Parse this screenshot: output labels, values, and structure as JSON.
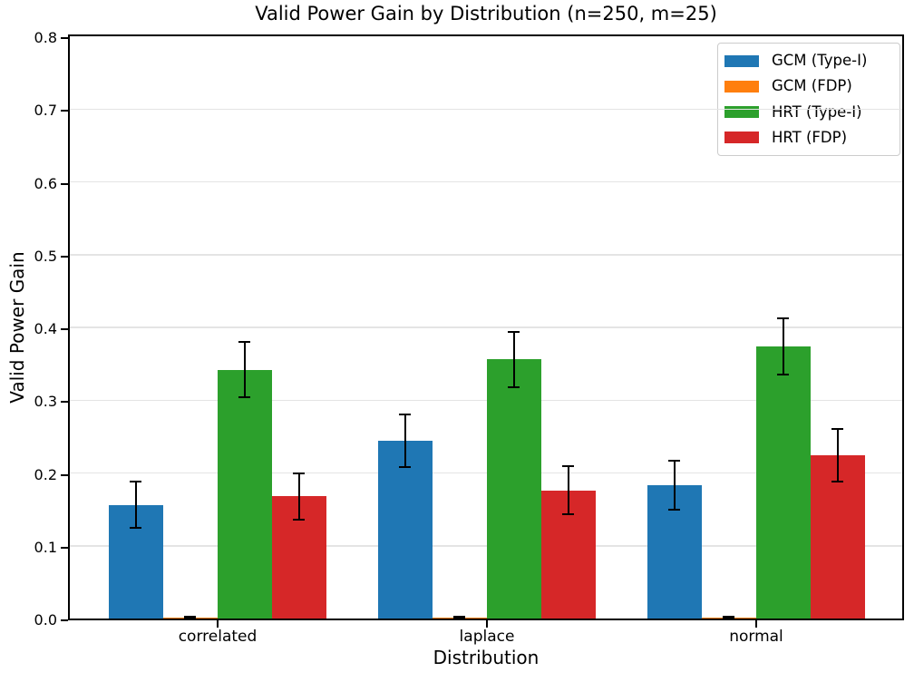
{
  "chart_data": {
    "type": "bar",
    "title": "Valid Power Gain by Distribution (n=250, m=25)",
    "xlabel": "Distribution",
    "ylabel": "Valid Power Gain",
    "categories": [
      "correlated",
      "laplace",
      "normal"
    ],
    "series": [
      {
        "name": "GCM (Type-I)",
        "color": "#1f77b4",
        "values": [
          0.156,
          0.244,
          0.183
        ],
        "errors": [
          0.032,
          0.036,
          0.034
        ]
      },
      {
        "name": "GCM (FDP)",
        "color": "#ff7f0e",
        "values": [
          0.001,
          0.001,
          0.001
        ],
        "errors": [
          0.001,
          0.001,
          0.001
        ]
      },
      {
        "name": "HRT (Type-I)",
        "color": "#2ca02c",
        "values": [
          0.342,
          0.356,
          0.374
        ],
        "errors": [
          0.038,
          0.038,
          0.039
        ]
      },
      {
        "name": "HRT (FDP)",
        "color": "#d62728",
        "values": [
          0.168,
          0.176,
          0.224
        ],
        "errors": [
          0.032,
          0.033,
          0.036
        ]
      }
    ],
    "ylim": [
      0.0,
      0.8
    ],
    "yticks": [
      0.0,
      0.1,
      0.2,
      0.3,
      0.4,
      0.5,
      0.6,
      0.7,
      0.8
    ],
    "ytick_decimals": 1,
    "grid": true,
    "legend_position": "upper right",
    "error_bar_color": "#000000",
    "background_color": "#ffffff"
  }
}
